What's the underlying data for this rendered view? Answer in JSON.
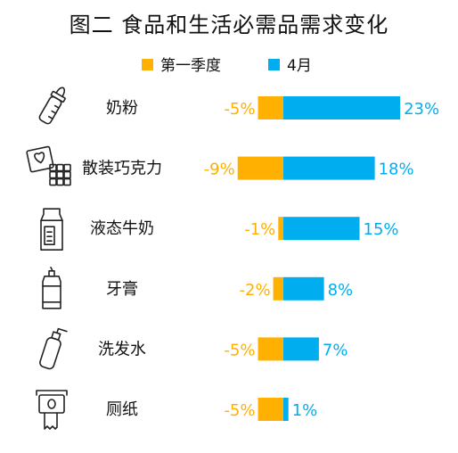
{
  "chart_data": {
    "type": "bar",
    "title": "图二 食品和生活必需品需求变化",
    "categories": [
      "奶粉",
      "散装巧克力",
      "液态牛奶",
      "牙膏",
      "洗发水",
      "厕纸"
    ],
    "icons": [
      "baby-bottle-icon",
      "chocolate-icon",
      "milk-carton-icon",
      "toothpaste-icon",
      "shampoo-bottle-icon",
      "toilet-paper-icon"
    ],
    "series": [
      {
        "name": "第一季度",
        "color": "#FFB000",
        "values": [
          -5,
          -9,
          -1,
          -2,
          -5,
          -5
        ],
        "labels": [
          "-5%",
          "-9%",
          "-1%",
          "-2%",
          "-5%",
          "-5%"
        ]
      },
      {
        "name": "4月",
        "color": "#00AEEF",
        "values": [
          23,
          18,
          15,
          8,
          7,
          1
        ],
        "labels": [
          "23%",
          "18%",
          "15%",
          "8%",
          "7%",
          "1%"
        ]
      }
    ],
    "unit": "%",
    "legend_position": "top-center",
    "grid": false
  }
}
